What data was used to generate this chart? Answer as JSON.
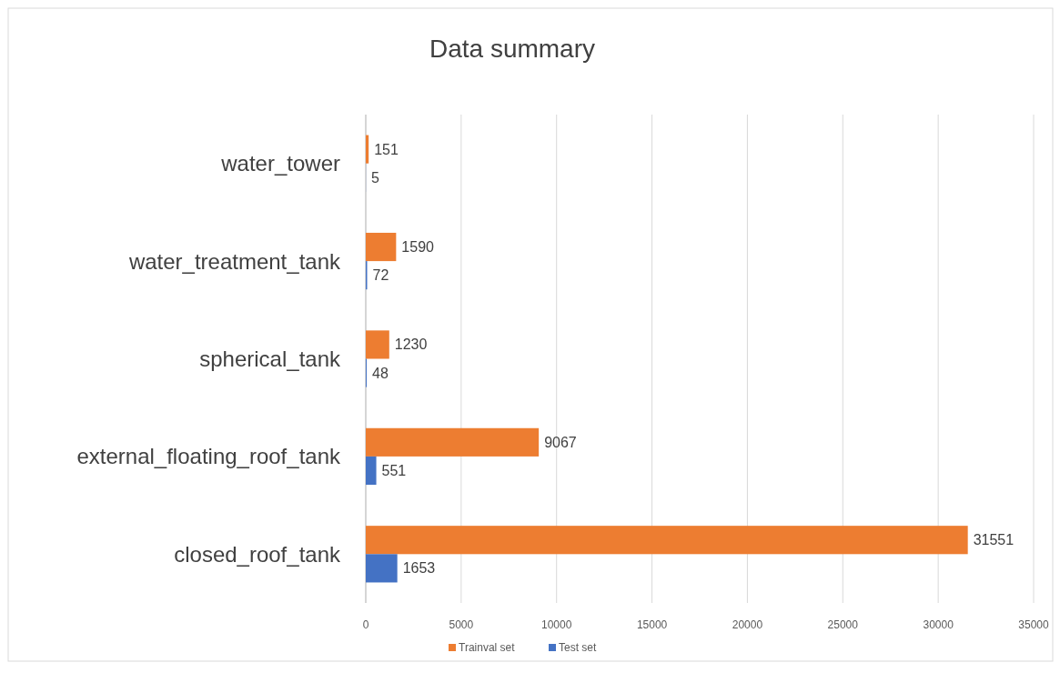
{
  "chart_data": {
    "type": "bar",
    "orientation": "horizontal",
    "title": "Data summary",
    "categories": [
      "water_tower",
      "water_treatment_tank",
      "spherical_tank",
      "external_floating_roof_tank",
      "closed_roof_tank"
    ],
    "series": [
      {
        "name": "Trainval set",
        "color": "#ed7d31",
        "values": [
          151,
          1590,
          1230,
          9067,
          31551
        ]
      },
      {
        "name": "Test set",
        "color": "#4472c4",
        "values": [
          5,
          72,
          48,
          551,
          1653
        ]
      }
    ],
    "xlim": [
      0,
      35000
    ],
    "xticks": [
      0,
      5000,
      10000,
      15000,
      20000,
      25000,
      30000,
      35000
    ],
    "grid": "x",
    "legend": "bottom",
    "data_labels": true
  }
}
